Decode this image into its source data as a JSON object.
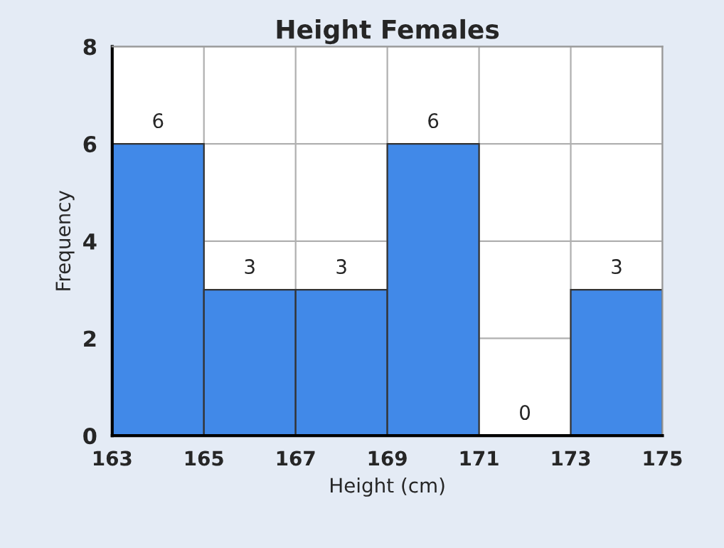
{
  "chart_data": {
    "type": "histogram",
    "title": "Height Females",
    "xlabel": "Height (cm)",
    "ylabel": "Frequency",
    "bins": [
      163,
      165,
      167,
      169,
      171,
      173,
      175
    ],
    "values": [
      6,
      3,
      3,
      6,
      0,
      3
    ],
    "color": "#4189e8",
    "data_labels": true,
    "xlim": [
      163,
      175
    ],
    "xticks": [
      163,
      165,
      167,
      169,
      171,
      173,
      175
    ],
    "ylim": [
      0,
      8
    ],
    "yticks": [
      0,
      2,
      4,
      6,
      8
    ],
    "grid": true
  }
}
